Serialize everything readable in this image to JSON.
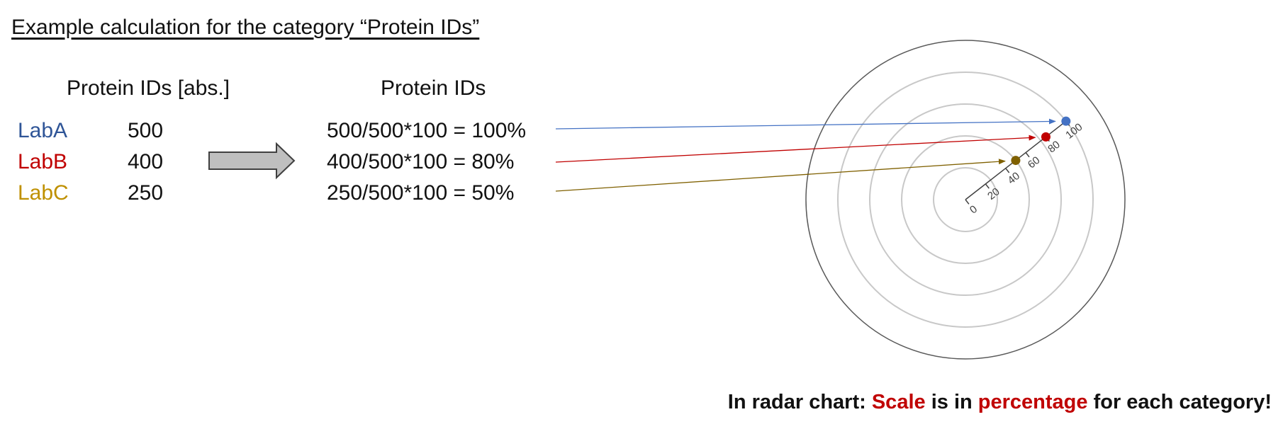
{
  "heading": "Example calculation for the category “Protein IDs”",
  "left_table": {
    "header": "Protein IDs [abs.]",
    "rows": [
      {
        "lab": "LabA",
        "value": "500",
        "color": "#2f5597"
      },
      {
        "lab": "LabB",
        "value": "400",
        "color": "#c00000"
      },
      {
        "lab": "LabC",
        "value": "250",
        "color": "#bf9000"
      }
    ]
  },
  "arrow_icon": "right-arrow-icon",
  "right_table": {
    "header": "Protein IDs",
    "rows": [
      {
        "calc": "500/500*100 = 100%"
      },
      {
        "calc": "400/500*100 = 80%"
      },
      {
        "calc": "250/500*100 = 50%"
      }
    ]
  },
  "radar": {
    "ticks": [
      "0",
      "20",
      "40",
      "60",
      "80",
      "100"
    ],
    "points": [
      {
        "lab": "LabA",
        "percent": 100,
        "color": "#4472c4"
      },
      {
        "lab": "LabB",
        "percent": 80,
        "color": "#c00000"
      },
      {
        "lab": "LabC",
        "percent": 50,
        "color": "#7f6000"
      }
    ]
  },
  "footer": {
    "part1": "In radar chart: ",
    "scale": "Scale",
    "part2": " is in ",
    "percentage": "percentage",
    "part3": " for each category!"
  }
}
